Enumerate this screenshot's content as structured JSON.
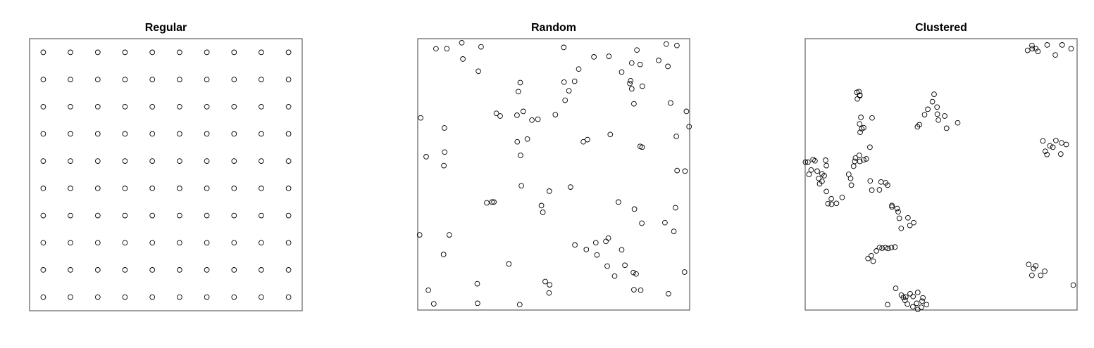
{
  "chart_data": [
    {
      "type": "scatter",
      "title": "Regular",
      "xlim": [
        0,
        1
      ],
      "ylim": [
        0,
        1
      ],
      "axes_visible": false,
      "grid": false,
      "points": [
        [
          0.05,
          0.95
        ],
        [
          0.15,
          0.95
        ],
        [
          0.25,
          0.95
        ],
        [
          0.35,
          0.95
        ],
        [
          0.45,
          0.95
        ],
        [
          0.55,
          0.95
        ],
        [
          0.65,
          0.95
        ],
        [
          0.75,
          0.95
        ],
        [
          0.85,
          0.95
        ],
        [
          0.95,
          0.95
        ],
        [
          0.05,
          0.85
        ],
        [
          0.15,
          0.85
        ],
        [
          0.25,
          0.85
        ],
        [
          0.35,
          0.85
        ],
        [
          0.45,
          0.85
        ],
        [
          0.55,
          0.85
        ],
        [
          0.65,
          0.85
        ],
        [
          0.75,
          0.85
        ],
        [
          0.85,
          0.85
        ],
        [
          0.95,
          0.85
        ],
        [
          0.05,
          0.75
        ],
        [
          0.15,
          0.75
        ],
        [
          0.25,
          0.75
        ],
        [
          0.35,
          0.75
        ],
        [
          0.45,
          0.75
        ],
        [
          0.55,
          0.75
        ],
        [
          0.65,
          0.75
        ],
        [
          0.75,
          0.75
        ],
        [
          0.85,
          0.75
        ],
        [
          0.95,
          0.75
        ],
        [
          0.05,
          0.65
        ],
        [
          0.15,
          0.65
        ],
        [
          0.25,
          0.65
        ],
        [
          0.35,
          0.65
        ],
        [
          0.45,
          0.65
        ],
        [
          0.55,
          0.65
        ],
        [
          0.65,
          0.65
        ],
        [
          0.75,
          0.65
        ],
        [
          0.85,
          0.65
        ],
        [
          0.95,
          0.65
        ],
        [
          0.05,
          0.55
        ],
        [
          0.15,
          0.55
        ],
        [
          0.25,
          0.55
        ],
        [
          0.35,
          0.55
        ],
        [
          0.45,
          0.55
        ],
        [
          0.55,
          0.55
        ],
        [
          0.65,
          0.55
        ],
        [
          0.75,
          0.55
        ],
        [
          0.85,
          0.55
        ],
        [
          0.95,
          0.55
        ],
        [
          0.05,
          0.45
        ],
        [
          0.15,
          0.45
        ],
        [
          0.25,
          0.45
        ],
        [
          0.35,
          0.45
        ],
        [
          0.45,
          0.45
        ],
        [
          0.55,
          0.45
        ],
        [
          0.65,
          0.45
        ],
        [
          0.75,
          0.45
        ],
        [
          0.85,
          0.45
        ],
        [
          0.95,
          0.45
        ],
        [
          0.05,
          0.35
        ],
        [
          0.15,
          0.35
        ],
        [
          0.25,
          0.35
        ],
        [
          0.35,
          0.35
        ],
        [
          0.45,
          0.35
        ],
        [
          0.55,
          0.35
        ],
        [
          0.65,
          0.35
        ],
        [
          0.75,
          0.35
        ],
        [
          0.85,
          0.35
        ],
        [
          0.95,
          0.35
        ],
        [
          0.05,
          0.25
        ],
        [
          0.15,
          0.25
        ],
        [
          0.25,
          0.25
        ],
        [
          0.35,
          0.25
        ],
        [
          0.45,
          0.25
        ],
        [
          0.55,
          0.25
        ],
        [
          0.65,
          0.25
        ],
        [
          0.75,
          0.25
        ],
        [
          0.85,
          0.25
        ],
        [
          0.95,
          0.25
        ],
        [
          0.05,
          0.15
        ],
        [
          0.15,
          0.15
        ],
        [
          0.25,
          0.15
        ],
        [
          0.35,
          0.15
        ],
        [
          0.45,
          0.15
        ],
        [
          0.55,
          0.15
        ],
        [
          0.65,
          0.15
        ],
        [
          0.75,
          0.15
        ],
        [
          0.85,
          0.15
        ],
        [
          0.95,
          0.15
        ],
        [
          0.05,
          0.05
        ],
        [
          0.15,
          0.05
        ],
        [
          0.25,
          0.05
        ],
        [
          0.35,
          0.05
        ],
        [
          0.45,
          0.05
        ],
        [
          0.55,
          0.05
        ],
        [
          0.65,
          0.05
        ],
        [
          0.75,
          0.05
        ],
        [
          0.85,
          0.05
        ],
        [
          0.95,
          0.05
        ]
      ]
    },
    {
      "type": "scatter",
      "title": "Random",
      "xlim": [
        0,
        1
      ],
      "ylim": [
        0,
        1
      ],
      "axes_visible": false,
      "grid": false,
      "points": [
        [
          0.067,
          0.963
        ],
        [
          0.107,
          0.963
        ],
        [
          0.162,
          0.985
        ],
        [
          0.233,
          0.97
        ],
        [
          0.223,
          0.88
        ],
        [
          0.166,
          0.925
        ],
        [
          0.537,
          0.968
        ],
        [
          0.648,
          0.933
        ],
        [
          0.592,
          0.888
        ],
        [
          0.538,
          0.84
        ],
        [
          0.556,
          0.808
        ],
        [
          0.577,
          0.843
        ],
        [
          0.542,
          0.773
        ],
        [
          0.506,
          0.72
        ],
        [
          0.403,
          0.63
        ],
        [
          0.42,
          0.7
        ],
        [
          0.442,
          0.703
        ],
        [
          0.365,
          0.718
        ],
        [
          0.289,
          0.725
        ],
        [
          0.303,
          0.715
        ],
        [
          0.37,
          0.805
        ],
        [
          0.377,
          0.838
        ],
        [
          0.388,
          0.732
        ],
        [
          0.011,
          0.708
        ],
        [
          0.098,
          0.671
        ],
        [
          0.099,
          0.582
        ],
        [
          0.031,
          0.565
        ],
        [
          0.096,
          0.532
        ],
        [
          0.366,
          0.62
        ],
        [
          0.378,
          0.57
        ],
        [
          0.381,
          0.458
        ],
        [
          0.28,
          0.398
        ],
        [
          0.273,
          0.398
        ],
        [
          0.254,
          0.395
        ],
        [
          0.484,
          0.438
        ],
        [
          0.562,
          0.453
        ],
        [
          0.46,
          0.36
        ],
        [
          0.455,
          0.385
        ],
        [
          0.116,
          0.277
        ],
        [
          0.007,
          0.277
        ],
        [
          0.095,
          0.205
        ],
        [
          0.335,
          0.17
        ],
        [
          0.039,
          0.073
        ],
        [
          0.059,
          0.023
        ],
        [
          0.219,
          0.097
        ],
        [
          0.22,
          0.025
        ],
        [
          0.375,
          0.02
        ],
        [
          0.485,
          0.093
        ],
        [
          0.469,
          0.105
        ],
        [
          0.483,
          0.063
        ],
        [
          0.703,
          0.935
        ],
        [
          0.806,
          0.958
        ],
        [
          0.787,
          0.91
        ],
        [
          0.783,
          0.845
        ],
        [
          0.78,
          0.835
        ],
        [
          0.75,
          0.877
        ],
        [
          0.818,
          0.905
        ],
        [
          0.826,
          0.825
        ],
        [
          0.787,
          0.815
        ],
        [
          0.795,
          0.76
        ],
        [
          0.914,
          0.98
        ],
        [
          0.953,
          0.975
        ],
        [
          0.886,
          0.92
        ],
        [
          0.92,
          0.898
        ],
        [
          0.93,
          0.763
        ],
        [
          0.988,
          0.732
        ],
        [
          0.998,
          0.676
        ],
        [
          0.951,
          0.64
        ],
        [
          0.818,
          0.603
        ],
        [
          0.825,
          0.6
        ],
        [
          0.708,
          0.647
        ],
        [
          0.624,
          0.628
        ],
        [
          0.609,
          0.62
        ],
        [
          0.983,
          0.512
        ],
        [
          0.954,
          0.514
        ],
        [
          0.948,
          0.377
        ],
        [
          0.738,
          0.398
        ],
        [
          0.797,
          0.372
        ],
        [
          0.824,
          0.32
        ],
        [
          0.909,
          0.322
        ],
        [
          0.942,
          0.29
        ],
        [
          0.701,
          0.265
        ],
        [
          0.692,
          0.253
        ],
        [
          0.655,
          0.248
        ],
        [
          0.578,
          0.24
        ],
        [
          0.62,
          0.223
        ],
        [
          0.75,
          0.222
        ],
        [
          0.659,
          0.203
        ],
        [
          0.697,
          0.162
        ],
        [
          0.724,
          0.125
        ],
        [
          0.762,
          0.165
        ],
        [
          0.82,
          0.073
        ],
        [
          0.795,
          0.075
        ],
        [
          0.793,
          0.138
        ],
        [
          0.803,
          0.133
        ],
        [
          0.981,
          0.14
        ],
        [
          0.922,
          0.06
        ]
      ]
    },
    {
      "type": "scatter",
      "title": "Clustered",
      "xlim": [
        0,
        1
      ],
      "ylim": [
        0,
        1
      ],
      "axes_visible": false,
      "grid": false,
      "points": [
        [
          0.001,
          0.545
        ],
        [
          0.01,
          0.545
        ],
        [
          0.029,
          0.555
        ],
        [
          0.036,
          0.55
        ],
        [
          0.014,
          0.5
        ],
        [
          0.022,
          0.516
        ],
        [
          0.044,
          0.512
        ],
        [
          0.05,
          0.485
        ],
        [
          0.062,
          0.502
        ],
        [
          0.07,
          0.495
        ],
        [
          0.062,
          0.474
        ],
        [
          0.078,
          0.532
        ],
        [
          0.075,
          0.552
        ],
        [
          0.053,
          0.465
        ],
        [
          0.078,
          0.437
        ],
        [
          0.084,
          0.392
        ],
        [
          0.096,
          0.41
        ],
        [
          0.097,
          0.39
        ],
        [
          0.115,
          0.393
        ],
        [
          0.136,
          0.415
        ],
        [
          0.16,
          0.5
        ],
        [
          0.167,
          0.485
        ],
        [
          0.17,
          0.46
        ],
        [
          0.178,
          0.53
        ],
        [
          0.182,
          0.548
        ],
        [
          0.185,
          0.56
        ],
        [
          0.199,
          0.57
        ],
        [
          0.201,
          0.548
        ],
        [
          0.202,
          0.655
        ],
        [
          0.208,
          0.668
        ],
        [
          0.2,
          0.686
        ],
        [
          0.215,
          0.672
        ],
        [
          0.238,
          0.6
        ],
        [
          0.246,
          0.708
        ],
        [
          0.205,
          0.71
        ],
        [
          0.192,
          0.778
        ],
        [
          0.201,
          0.792
        ],
        [
          0.19,
          0.802
        ],
        [
          0.198,
          0.805
        ],
        [
          0.201,
          0.79
        ],
        [
          0.215,
          0.553
        ],
        [
          0.225,
          0.557
        ],
        [
          0.239,
          0.476
        ],
        [
          0.245,
          0.442
        ],
        [
          0.273,
          0.443
        ],
        [
          0.279,
          0.472
        ],
        [
          0.296,
          0.469
        ],
        [
          0.303,
          0.46
        ],
        [
          0.319,
          0.385
        ],
        [
          0.319,
          0.38
        ],
        [
          0.338,
          0.374
        ],
        [
          0.342,
          0.362
        ],
        [
          0.346,
          0.338
        ],
        [
          0.353,
          0.301
        ],
        [
          0.385,
          0.312
        ],
        [
          0.399,
          0.322
        ],
        [
          0.378,
          0.34
        ],
        [
          0.231,
          0.19
        ],
        [
          0.243,
          0.2
        ],
        [
          0.25,
          0.18
        ],
        [
          0.262,
          0.218
        ],
        [
          0.273,
          0.23
        ],
        [
          0.283,
          0.228
        ],
        [
          0.295,
          0.23
        ],
        [
          0.305,
          0.227
        ],
        [
          0.317,
          0.23
        ],
        [
          0.33,
          0.232
        ],
        [
          0.303,
          0.02
        ],
        [
          0.333,
          0.08
        ],
        [
          0.354,
          0.055
        ],
        [
          0.361,
          0.046
        ],
        [
          0.367,
          0.036
        ],
        [
          0.376,
          0.022
        ],
        [
          0.37,
          0.048
        ],
        [
          0.386,
          0.06
        ],
        [
          0.397,
          0.05
        ],
        [
          0.41,
          0.025
        ],
        [
          0.396,
          0.012
        ],
        [
          0.414,
          0.002
        ],
        [
          0.427,
          0.01
        ],
        [
          0.446,
          0.02
        ],
        [
          0.43,
          0.033
        ],
        [
          0.433,
          0.045
        ],
        [
          0.414,
          0.065
        ],
        [
          0.413,
          0.675
        ],
        [
          0.42,
          0.683
        ],
        [
          0.439,
          0.72
        ],
        [
          0.451,
          0.74
        ],
        [
          0.468,
          0.768
        ],
        [
          0.474,
          0.795
        ],
        [
          0.485,
          0.748
        ],
        [
          0.486,
          0.722
        ],
        [
          0.513,
          0.715
        ],
        [
          0.49,
          0.7
        ],
        [
          0.52,
          0.67
        ],
        [
          0.561,
          0.69
        ],
        [
          0.818,
          0.957
        ],
        [
          0.835,
          0.963
        ],
        [
          0.834,
          0.975
        ],
        [
          0.848,
          0.963
        ],
        [
          0.856,
          0.953
        ],
        [
          0.89,
          0.977
        ],
        [
          0.92,
          0.94
        ],
        [
          0.945,
          0.977
        ],
        [
          0.978,
          0.963
        ],
        [
          0.874,
          0.623
        ],
        [
          0.883,
          0.585
        ],
        [
          0.889,
          0.573
        ],
        [
          0.9,
          0.605
        ],
        [
          0.911,
          0.6
        ],
        [
          0.922,
          0.625
        ],
        [
          0.943,
          0.616
        ],
        [
          0.94,
          0.575
        ],
        [
          0.96,
          0.61
        ],
        [
          0.822,
          0.168
        ],
        [
          0.848,
          0.163
        ],
        [
          0.84,
          0.153
        ],
        [
          0.834,
          0.128
        ],
        [
          0.866,
          0.128
        ],
        [
          0.881,
          0.143
        ],
        [
          0.986,
          0.092
        ]
      ]
    }
  ]
}
